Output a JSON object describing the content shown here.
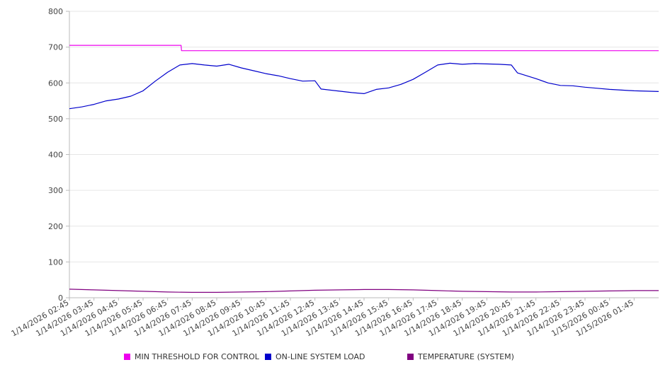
{
  "chart_data": {
    "type": "line",
    "ylim": [
      0,
      800
    ],
    "yticks": [
      0,
      100,
      200,
      300,
      400,
      500,
      600,
      700,
      800
    ],
    "xlim": [
      "1/14/2026 02:45",
      "1/15/2026 02:45"
    ],
    "xtick_labels": [
      "1/14/2026 02:45",
      "1/14/2026 03:45",
      "1/14/2026 04:45",
      "1/14/2026 05:45",
      "1/14/2026 06:45",
      "1/14/2026 07:45",
      "1/14/2026 08:45",
      "1/14/2026 09:45",
      "1/14/2026 10:45",
      "1/14/2026 11:45",
      "1/14/2026 12:45",
      "1/14/2026 13:45",
      "1/14/2026 14:45",
      "1/14/2026 15:45",
      "1/14/2026 16:45",
      "1/14/2026 17:45",
      "1/14/2026 18:45",
      "1/14/2026 19:45",
      "1/14/2026 20:45",
      "1/14/2026 21:45",
      "1/14/2026 22:45",
      "1/14/2026 23:45",
      "1/15/2026 00:45",
      "1/15/2026 01:45"
    ],
    "grid": true,
    "legend_position": "bottom",
    "series": [
      {
        "name": "MIN THRESHOLD FOR CONTROL",
        "color": "#ee00ee",
        "points": [
          [
            "1/14/2026 02:45",
            705
          ],
          [
            "1/14/2026 07:18",
            705
          ],
          [
            "1/14/2026 07:19",
            690
          ],
          [
            "1/15/2026 02:45",
            690
          ]
        ]
      },
      {
        "name": "ON-LINE SYSTEM LOAD",
        "color": "#0000cc",
        "points": [
          [
            "1/14/2026 02:45",
            528
          ],
          [
            "1/14/2026 03:15",
            533
          ],
          [
            "1/14/2026 03:45",
            540
          ],
          [
            "1/14/2026 04:15",
            550
          ],
          [
            "1/14/2026 04:45",
            555
          ],
          [
            "1/14/2026 05:15",
            563
          ],
          [
            "1/14/2026 05:45",
            578
          ],
          [
            "1/14/2026 06:15",
            605
          ],
          [
            "1/14/2026 06:45",
            630
          ],
          [
            "1/14/2026 07:15",
            650
          ],
          [
            "1/14/2026 07:45",
            654
          ],
          [
            "1/14/2026 08:15",
            650
          ],
          [
            "1/14/2026 08:45",
            647
          ],
          [
            "1/14/2026 09:15",
            652
          ],
          [
            "1/14/2026 09:45",
            642
          ],
          [
            "1/14/2026 10:15",
            634
          ],
          [
            "1/14/2026 10:45",
            626
          ],
          [
            "1/14/2026 11:15",
            620
          ],
          [
            "1/14/2026 11:45",
            612
          ],
          [
            "1/14/2026 12:15",
            605
          ],
          [
            "1/14/2026 12:45",
            606
          ],
          [
            "1/14/2026 13:00",
            583
          ],
          [
            "1/14/2026 13:45",
            577
          ],
          [
            "1/14/2026 14:15",
            573
          ],
          [
            "1/14/2026 14:45",
            570
          ],
          [
            "1/14/2026 15:15",
            582
          ],
          [
            "1/14/2026 15:45",
            586
          ],
          [
            "1/14/2026 16:15",
            596
          ],
          [
            "1/14/2026 16:45",
            610
          ],
          [
            "1/14/2026 17:15",
            630
          ],
          [
            "1/14/2026 17:45",
            650
          ],
          [
            "1/14/2026 18:15",
            655
          ],
          [
            "1/14/2026 18:45",
            652
          ],
          [
            "1/14/2026 19:15",
            654
          ],
          [
            "1/14/2026 19:45",
            653
          ],
          [
            "1/14/2026 20:15",
            652
          ],
          [
            "1/14/2026 20:45",
            650
          ],
          [
            "1/14/2026 21:00",
            628
          ],
          [
            "1/14/2026 21:45",
            612
          ],
          [
            "1/14/2026 22:15",
            600
          ],
          [
            "1/14/2026 22:45",
            593
          ],
          [
            "1/14/2026 23:15",
            592
          ],
          [
            "1/14/2026 23:45",
            588
          ],
          [
            "1/15/2026 00:15",
            585
          ],
          [
            "1/15/2026 00:45",
            582
          ],
          [
            "1/15/2026 01:15",
            580
          ],
          [
            "1/15/2026 01:45",
            578
          ],
          [
            "1/15/2026 02:45",
            576
          ]
        ]
      },
      {
        "name": "TEMPERATURE (SYSTEM)",
        "color": "#800080",
        "points": [
          [
            "1/14/2026 02:45",
            24
          ],
          [
            "1/14/2026 03:45",
            22
          ],
          [
            "1/14/2026 04:45",
            20
          ],
          [
            "1/14/2026 05:45",
            18
          ],
          [
            "1/14/2026 06:45",
            16
          ],
          [
            "1/14/2026 07:45",
            15
          ],
          [
            "1/14/2026 08:45",
            15
          ],
          [
            "1/14/2026 09:45",
            16
          ],
          [
            "1/14/2026 10:45",
            17
          ],
          [
            "1/14/2026 11:45",
            19
          ],
          [
            "1/14/2026 12:45",
            21
          ],
          [
            "1/14/2026 13:45",
            22
          ],
          [
            "1/14/2026 14:45",
            23
          ],
          [
            "1/14/2026 15:45",
            23
          ],
          [
            "1/14/2026 16:45",
            22
          ],
          [
            "1/14/2026 17:45",
            20
          ],
          [
            "1/14/2026 18:45",
            18
          ],
          [
            "1/14/2026 19:45",
            17
          ],
          [
            "1/14/2026 20:45",
            16
          ],
          [
            "1/14/2026 21:45",
            16
          ],
          [
            "1/14/2026 22:45",
            17
          ],
          [
            "1/14/2026 23:45",
            18
          ],
          [
            "1/15/2026 00:45",
            19
          ],
          [
            "1/15/2026 01:45",
            20
          ],
          [
            "1/15/2026 02:45",
            20
          ]
        ]
      }
    ]
  }
}
